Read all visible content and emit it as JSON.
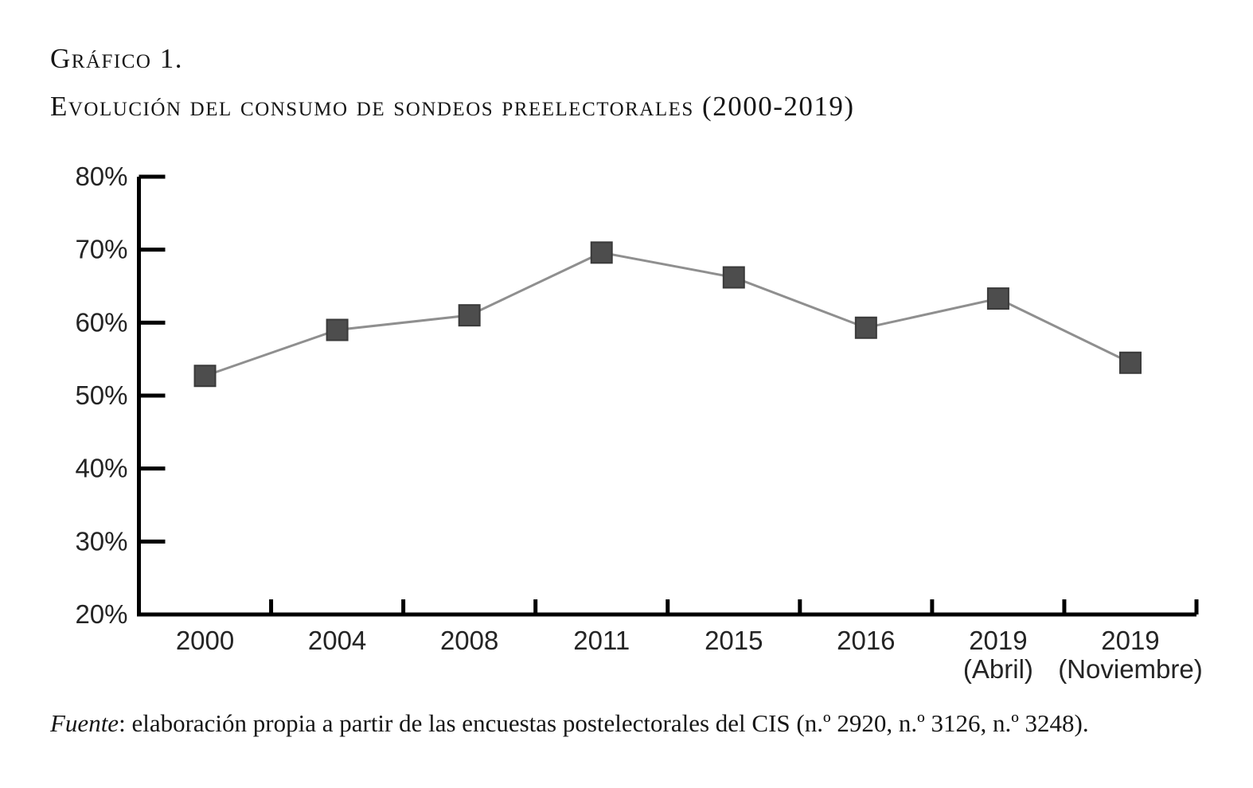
{
  "page": {
    "title": "Gráfico 1.",
    "subtitle": "Evolución del consumo de sondeos preelectorales (2000-2019)",
    "source_label_italic": "Fuente",
    "source_rest": ": elaboración propia a partir de las encuestas postelectorales del CIS (n.º 2920, n.º 3126, n.º 3248)."
  },
  "chart_data": {
    "type": "line",
    "title": "Evolución del consumo de sondeos preelectorales (2000-2019)",
    "categories": [
      "2000",
      "2004",
      "2008",
      "2011",
      "2015",
      "2016",
      "2019 (Abril)",
      "2019 (Noviembre)"
    ],
    "category_label_lines": [
      [
        "2000"
      ],
      [
        "2004"
      ],
      [
        "2008"
      ],
      [
        "2011"
      ],
      [
        "2015"
      ],
      [
        "2016"
      ],
      [
        "2019",
        "(Abril)"
      ],
      [
        "2019",
        "(Noviembre)"
      ]
    ],
    "values": [
      52.7,
      59.0,
      61.0,
      69.6,
      66.2,
      59.3,
      63.3,
      54.5
    ],
    "value_suffix": "%",
    "xlabel": "",
    "ylabel": "",
    "ylim": [
      20,
      80
    ],
    "ytick_step": 10,
    "ytick_suffix": "%",
    "grid": false,
    "legend": false,
    "marker": "square",
    "colors": {
      "line": "#8f8f8f",
      "marker_fill": "#4d4d4d",
      "marker_stroke": "#3a3a3a",
      "axis": "#000000",
      "tick_text": "#242424"
    }
  }
}
